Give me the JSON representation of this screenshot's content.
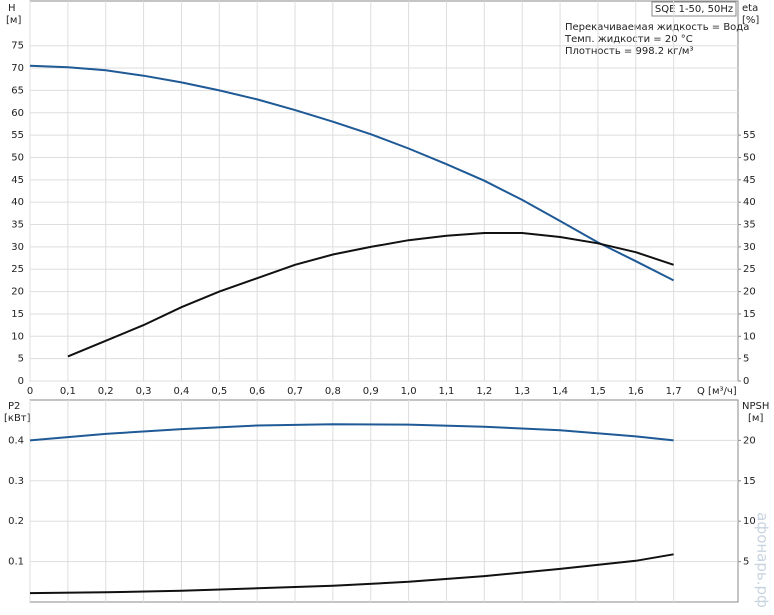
{
  "chart_data": [
    {
      "type": "line",
      "title": "SQE 1-50, 50Hz",
      "notes": [
        "Перекачиваемая жидкость = Вода",
        "Темп. жидкости = 20 °C",
        "Плотность = 998.2 кг/м³"
      ],
      "x_label": "Q [м³/ч]",
      "y_label": "H",
      "y_unit": "[м]",
      "y2_label": "eta",
      "y2_unit": "[%]",
      "x": [
        0,
        0.1,
        0.2,
        0.3,
        0.4,
        0.5,
        0.6,
        0.7,
        0.8,
        0.9,
        1.0,
        1.1,
        1.2,
        1.3,
        1.4,
        1.5,
        1.6,
        1.7
      ],
      "xlim": [
        0,
        1.87
      ],
      "xticks": [
        0,
        {
          "value": 0.1,
          "label": "0,1"
        },
        {
          "value": 0.2,
          "label": "0,2"
        },
        {
          "value": 0.3,
          "label": "0,3"
        },
        {
          "value": 0.4,
          "label": "0,4"
        },
        {
          "value": 0.5,
          "label": "0,5"
        },
        {
          "value": 0.6,
          "label": "0,6"
        },
        {
          "value": 0.7,
          "label": "0,7"
        },
        {
          "value": 0.8,
          "label": "0,8"
        },
        {
          "value": 0.9,
          "label": "0,9"
        },
        {
          "value": 1.0,
          "label": "1,0"
        },
        {
          "value": 1.1,
          "label": "1,1"
        },
        {
          "value": 1.2,
          "label": "1,2"
        },
        {
          "value": 1.3,
          "label": "1,3"
        },
        {
          "value": 1.4,
          "label": "1,4"
        },
        {
          "value": 1.5,
          "label": "1,5"
        },
        {
          "value": 1.6,
          "label": "1,6"
        },
        {
          "value": 1.7,
          "label": "1,7"
        }
      ],
      "ylim": [
        0,
        85
      ],
      "yticks": [
        0,
        5,
        10,
        15,
        20,
        25,
        30,
        35,
        40,
        45,
        50,
        55,
        60,
        65,
        70,
        75
      ],
      "y2lim": [
        0,
        85
      ],
      "y2ticks": [
        0,
        5,
        10,
        15,
        20,
        25,
        30,
        35,
        40,
        45,
        50,
        55
      ],
      "grid": true,
      "series": [
        {
          "name": "H",
          "color": "#1f5a96",
          "values": [
            70.5,
            70.2,
            69.5,
            68.3,
            66.8,
            65.0,
            63.0,
            60.6,
            58.0,
            55.2,
            52.0,
            48.5,
            44.8,
            40.5,
            35.8,
            31.0,
            26.8,
            22.5
          ]
        },
        {
          "name": "eta",
          "axis": "y2",
          "color": "#111111",
          "values": [
            null,
            5.5,
            9.0,
            12.5,
            16.5,
            20.0,
            23.0,
            26.0,
            28.3,
            30.0,
            31.5,
            32.5,
            33.1,
            33.1,
            32.2,
            30.8,
            28.8,
            26.0
          ]
        }
      ]
    },
    {
      "type": "line",
      "y_label": "P2",
      "y_unit": "[кВт]",
      "y2_label": "NPSH",
      "y2_unit": "[м]",
      "x": [
        0,
        0.2,
        0.4,
        0.6,
        0.8,
        1.0,
        1.2,
        1.4,
        1.6,
        1.7
      ],
      "ylim": [
        0,
        0.5
      ],
      "yticks": [
        0.1,
        0.2,
        0.3,
        0.4
      ],
      "y2lim": [
        0,
        25
      ],
      "y2ticks": [
        5,
        10,
        15,
        20
      ],
      "series": [
        {
          "name": "P2",
          "color": "#1f5a96",
          "values": [
            0.4,
            0.416,
            0.428,
            0.437,
            0.44,
            0.439,
            0.434,
            0.425,
            0.41,
            0.4
          ]
        },
        {
          "name": "NPSH",
          "axis": "y2",
          "color": "#111111",
          "values": [
            1.1,
            1.2,
            1.4,
            1.7,
            2.0,
            2.5,
            3.2,
            4.1,
            5.1,
            5.9
          ]
        }
      ]
    }
  ],
  "watermark": "афонарь.рф"
}
